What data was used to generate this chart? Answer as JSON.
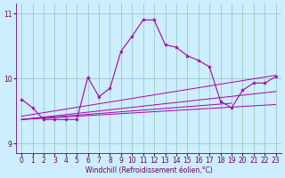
{
  "bg_color": "#cceeff",
  "grid_color": "#99ccbb",
  "line_color": "#aa00aa",
  "xlabel": "Windchill (Refroidissement éolien,°C)",
  "xlim": [
    -0.5,
    23.5
  ],
  "ylim": [
    8.85,
    11.15
  ],
  "yticks": [
    9,
    10,
    11
  ],
  "xticks": [
    0,
    1,
    2,
    3,
    4,
    5,
    6,
    7,
    8,
    9,
    10,
    11,
    12,
    13,
    14,
    15,
    16,
    17,
    18,
    19,
    20,
    21,
    22,
    23
  ],
  "main_x": [
    0,
    1,
    2,
    3,
    4,
    5,
    6,
    7,
    8,
    9,
    10,
    11,
    12,
    13,
    14,
    15,
    16,
    17,
    18,
    19,
    20,
    21,
    22,
    23
  ],
  "main_y": [
    9.68,
    9.55,
    9.37,
    9.37,
    9.37,
    9.37,
    10.02,
    9.72,
    9.85,
    10.42,
    10.65,
    10.9,
    10.9,
    10.52,
    10.48,
    10.35,
    10.28,
    10.18,
    9.65,
    9.55,
    9.82,
    9.93,
    9.93,
    10.03
  ],
  "trend1_x": [
    0,
    23
  ],
  "trend1_y": [
    9.37,
    9.6
  ],
  "trend2_x": [
    0,
    23
  ],
  "trend2_y": [
    9.37,
    9.8
  ],
  "trend3_x": [
    0,
    19
  ],
  "trend3_y": [
    9.37,
    9.62
  ],
  "trend4_x": [
    0,
    23
  ],
  "trend4_y": [
    9.42,
    10.05
  ]
}
